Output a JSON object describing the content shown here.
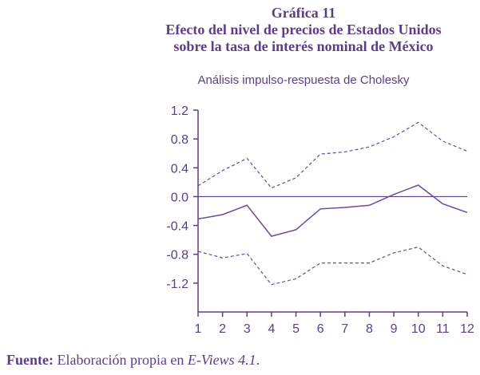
{
  "title": {
    "line1": "Gráfica 11",
    "line2": "Efecto del nivel de precios de Estados Unidos",
    "line3": "sobre la tasa de interés nominal de México"
  },
  "subtitle": "Análisis impulso-respuesta de Cholesky",
  "footer": {
    "label": "Fuente:",
    "text": " Elaboración propia en ",
    "software": "E-Views 4.1",
    "end": "."
  },
  "colors": {
    "line": "#6a4a9a",
    "axis": "#5b3f86"
  },
  "chart_data": {
    "type": "line",
    "title": "Efecto del nivel de precios de Estados Unidos sobre la tasa de interés nominal de México",
    "subtitle": "Análisis impulso-respuesta de Cholesky",
    "x": [
      1,
      2,
      3,
      4,
      5,
      6,
      7,
      8,
      9,
      10,
      11,
      12
    ],
    "xlabel": "",
    "ylabel": "",
    "ylim": [
      -1.6,
      1.2
    ],
    "yticks": [
      1.2,
      0.8,
      0.4,
      0.0,
      -0.4,
      -0.8,
      -1.2
    ],
    "ytick_labels": [
      "1.2",
      "0.8",
      "0.4",
      "0.0",
      "-0.4",
      "-0.8",
      "-1.2"
    ],
    "xtick_labels": [
      "1",
      "2",
      "3",
      "4",
      "5",
      "6",
      "7",
      "8",
      "9",
      "10",
      "11",
      "12"
    ],
    "zero_line": true,
    "series": [
      {
        "name": "upper",
        "style": "dashed",
        "values": [
          0.15,
          0.36,
          0.53,
          0.12,
          0.26,
          0.59,
          0.62,
          0.69,
          0.83,
          1.03,
          0.77,
          0.63
        ]
      },
      {
        "name": "response",
        "style": "solid",
        "values": [
          -0.31,
          -0.25,
          -0.12,
          -0.55,
          -0.46,
          -0.17,
          -0.15,
          -0.12,
          0.03,
          0.16,
          -0.1,
          -0.22
        ]
      },
      {
        "name": "lower",
        "style": "dashed",
        "values": [
          -0.76,
          -0.85,
          -0.79,
          -1.22,
          -1.14,
          -0.92,
          -0.92,
          -0.92,
          -0.78,
          -0.7,
          -0.96,
          -1.08
        ]
      }
    ]
  }
}
